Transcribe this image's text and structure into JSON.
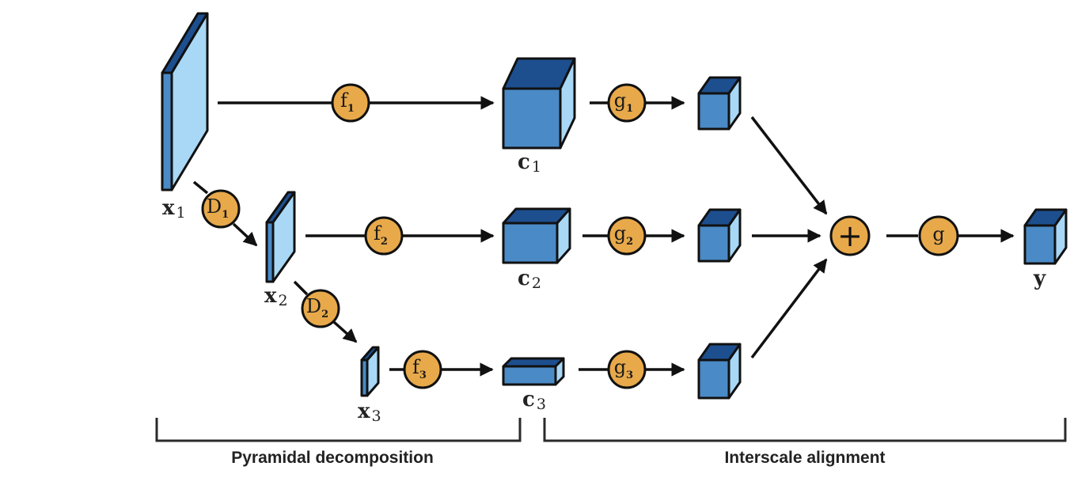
{
  "colors": {
    "operator_fill": "#E8A94A",
    "cube_front": "#4A8AC6",
    "cube_top": "#1D4F8F",
    "cube_side": "#A8D8F5",
    "slab_front": "#A8D8F5",
    "slab_top": "#1D4F8F",
    "slab_side": "#4A8AC6",
    "stroke": "#111111"
  },
  "inputs": [
    {
      "id": "x1",
      "base": "x",
      "sub": "1"
    },
    {
      "id": "x2",
      "base": "x",
      "sub": "2"
    },
    {
      "id": "x3",
      "base": "x",
      "sub": "3"
    }
  ],
  "coefficients": [
    {
      "id": "c1",
      "base": "c",
      "sub": "1"
    },
    {
      "id": "c2",
      "base": "c",
      "sub": "2"
    },
    {
      "id": "c3",
      "base": "c",
      "sub": "3"
    }
  ],
  "operators": {
    "f": [
      {
        "id": "f1",
        "base": "f",
        "sub": "1"
      },
      {
        "id": "f2",
        "base": "f",
        "sub": "2"
      },
      {
        "id": "f3",
        "base": "f",
        "sub": "3"
      }
    ],
    "g": [
      {
        "id": "g1",
        "base": "g",
        "sub": "1"
      },
      {
        "id": "g2",
        "base": "g",
        "sub": "2"
      },
      {
        "id": "g3",
        "base": "g",
        "sub": "3"
      }
    ],
    "D": [
      {
        "id": "D1",
        "base": "D",
        "sub": "1"
      },
      {
        "id": "D2",
        "base": "D",
        "sub": "2"
      }
    ],
    "sum": {
      "symbol": "+"
    },
    "final": {
      "base": "g"
    }
  },
  "output": {
    "label": "y"
  },
  "sections": {
    "left": "Pyramidal decomposition",
    "right": "Interscale alignment"
  }
}
